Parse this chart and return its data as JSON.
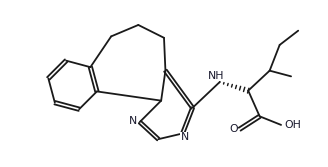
{
  "background_color": "#ffffff",
  "bond_color": "#1a1a1a",
  "text_color": "#1a1a2e",
  "lw": 1.3,
  "fig_width": 3.28,
  "fig_height": 1.67,
  "dpi": 100,
  "xlim": [
    -0.5,
    10.0
  ],
  "ylim": [
    -0.3,
    5.5
  ]
}
